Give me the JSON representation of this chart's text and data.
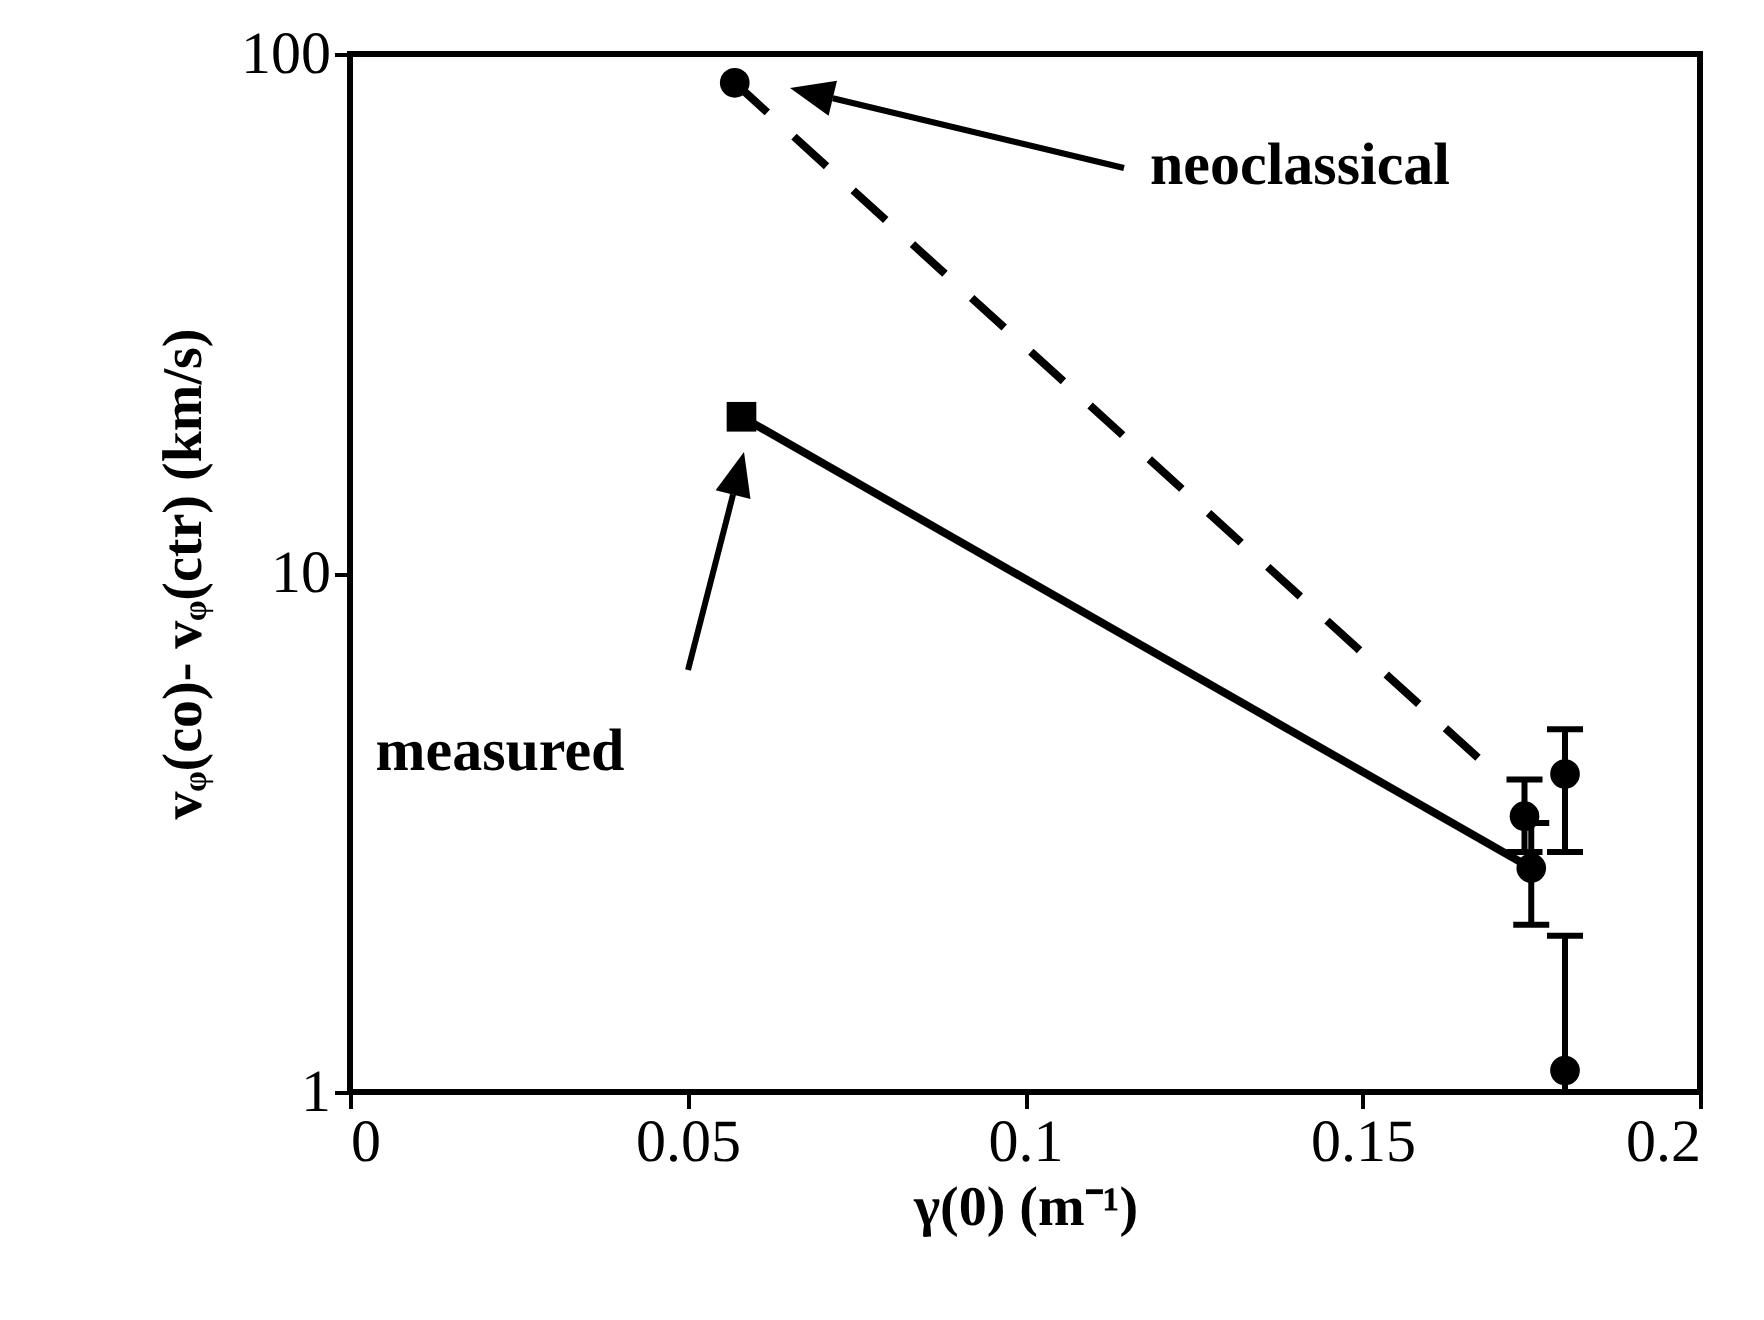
{
  "chart_data": {
    "type": "scatter",
    "xlabel": "γ(0) (m⁻¹)",
    "ylabel": "vᵩ(co)- vᵩ(ctr) (km/s)",
    "xlim": [
      0,
      0.2
    ],
    "xticks": [
      0,
      0.05,
      0.1,
      0.15,
      0.2
    ],
    "ylim": [
      1,
      100
    ],
    "yticks": [
      1,
      10,
      100
    ],
    "log": "y",
    "grid": false,
    "series": [
      {
        "type": "line",
        "color": "#000000",
        "line_style": "solid",
        "marker": "none",
        "x": [
          0.058,
          0.175
        ],
        "values": [
          20,
          2.7
        ]
      },
      {
        "type": "line",
        "color": "#000000",
        "line_style": "dashed",
        "marker": "none",
        "x": [
          0.057,
          0.168
        ],
        "values": [
          88,
          4.3
        ]
      },
      {
        "color": "#000000",
        "marker": "square",
        "x": [
          0.058
        ],
        "values": [
          20
        ]
      },
      {
        "color": "#000000",
        "marker": "circle",
        "x": [
          0.175,
          0.18
        ],
        "values": [
          2.7,
          4.1
        ],
        "errors": [
          [
            2.1,
            3.3
          ],
          [
            2.9,
            5.0
          ]
        ]
      },
      {
        "color": "#000000",
        "marker": "circle",
        "x": [
          0.057,
          0.174,
          0.18
        ],
        "values": [
          88,
          3.4,
          1.1
        ],
        "errors": [
          null,
          [
            2.9,
            4.0
          ],
          [
            1.0,
            2.0
          ]
        ]
      }
    ],
    "annotations": [
      "neoclassical",
      "measured"
    ]
  }
}
